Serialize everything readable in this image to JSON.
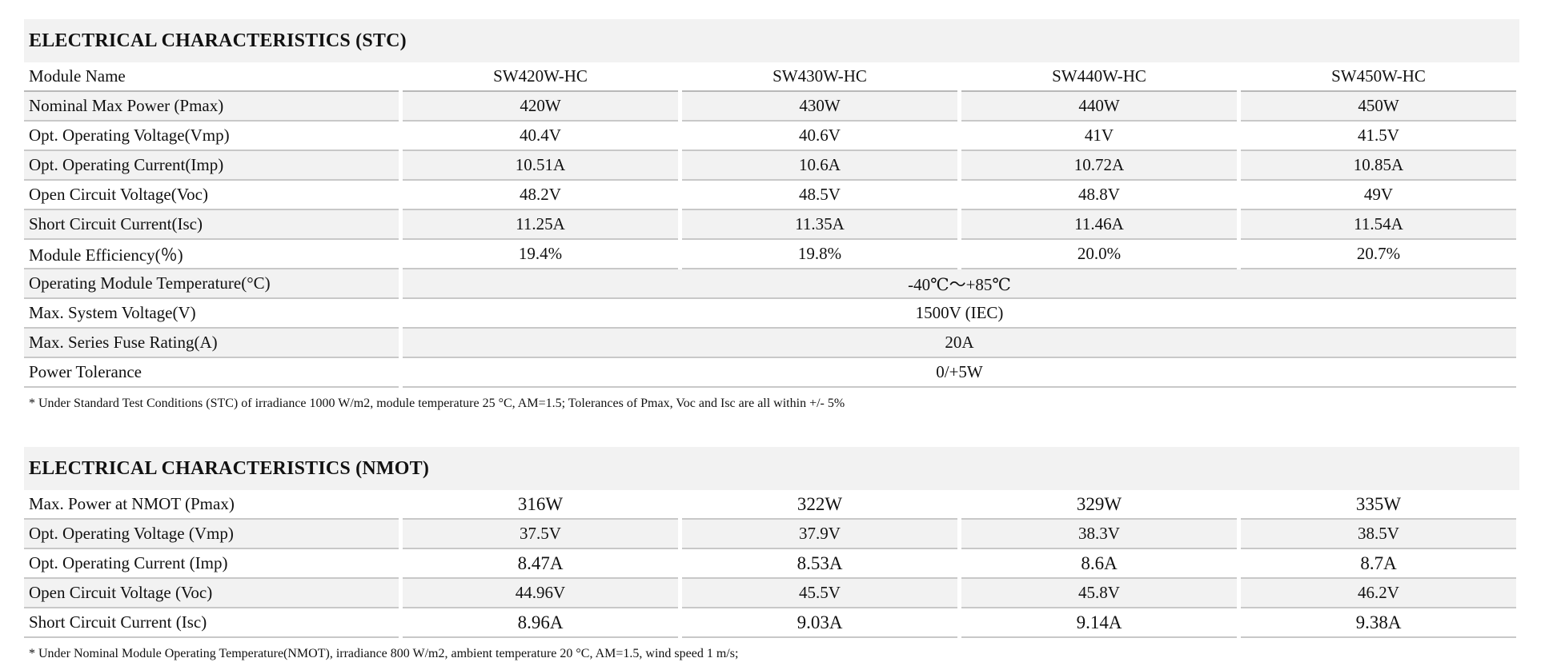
{
  "stc": {
    "title": "ELECTRICAL CHARACTERISTICS (STC)",
    "header": {
      "label": "Module Name",
      "models": [
        "SW420W-HC",
        "SW430W-HC",
        "SW440W-HC",
        "SW450W-HC"
      ]
    },
    "rows": [
      {
        "label": "Nominal Max Power (Pmax)",
        "values": [
          "420W",
          "430W",
          "440W",
          "450W"
        ]
      },
      {
        "label": "Opt. Operating Voltage(Vmp)",
        "values": [
          "40.4V",
          "40.6V",
          "41V",
          "41.5V"
        ]
      },
      {
        "label": "Opt. Operating Current(Imp)",
        "values": [
          "10.51A",
          "10.6A",
          "10.72A",
          "10.85A"
        ]
      },
      {
        "label": "Open Circuit Voltage(Voc)",
        "values": [
          "48.2V",
          "48.5V",
          "48.8V",
          "49V"
        ]
      },
      {
        "label": "Short Circuit Current(Isc)",
        "values": [
          "11.25A",
          "11.35A",
          "11.46A",
          "11.54A"
        ]
      },
      {
        "label": "Module Efficiency(％)",
        "values": [
          "19.4%",
          "19.8%",
          "20.0%",
          "20.7%"
        ]
      }
    ],
    "spanned_rows": [
      {
        "label": "Operating Module Temperature(°C)",
        "value": "-40℃～+85℃"
      },
      {
        "label": "Max. System Voltage(V)",
        "value": "1500V (IEC)"
      },
      {
        "label": "Max. Series Fuse Rating(A)",
        "value": "20A"
      },
      {
        "label": "Power Tolerance",
        "value": "0/+5W"
      }
    ],
    "footnote": "* Under Standard Test Conditions (STC) of irradiance 1000 W/m2, module temperature 25 °C, AM=1.5; Tolerances of Pmax, Voc and Isc are all within +/- 5%"
  },
  "nmot": {
    "title": "ELECTRICAL CHARACTERISTICS (NMOT)",
    "rows": [
      {
        "label": "Max. Power at NMOT (Pmax)",
        "values": [
          "316W",
          "322W",
          "329W",
          "335W"
        ]
      },
      {
        "label": "Opt. Operating Voltage (Vmp)",
        "values": [
          "37.5V",
          "37.9V",
          "38.3V",
          "38.5V"
        ]
      },
      {
        "label": "Opt. Operating Current (Imp)",
        "values": [
          "8.47A",
          "8.53A",
          "8.6A",
          "8.7A"
        ]
      },
      {
        "label": "Open Circuit Voltage (Voc)",
        "values": [
          "44.96V",
          "45.5V",
          "45.8V",
          "46.2V"
        ]
      },
      {
        "label": "Short Circuit Current (Isc)",
        "values": [
          "8.96A",
          "9.03A",
          "9.14A",
          "9.38A"
        ]
      }
    ],
    "footnote": "* Under Nominal Module Operating Temperature(NMOT), irradiance 800 W/m2, ambient temperature 20 °C, AM=1.5, wind speed 1 m/s;"
  }
}
